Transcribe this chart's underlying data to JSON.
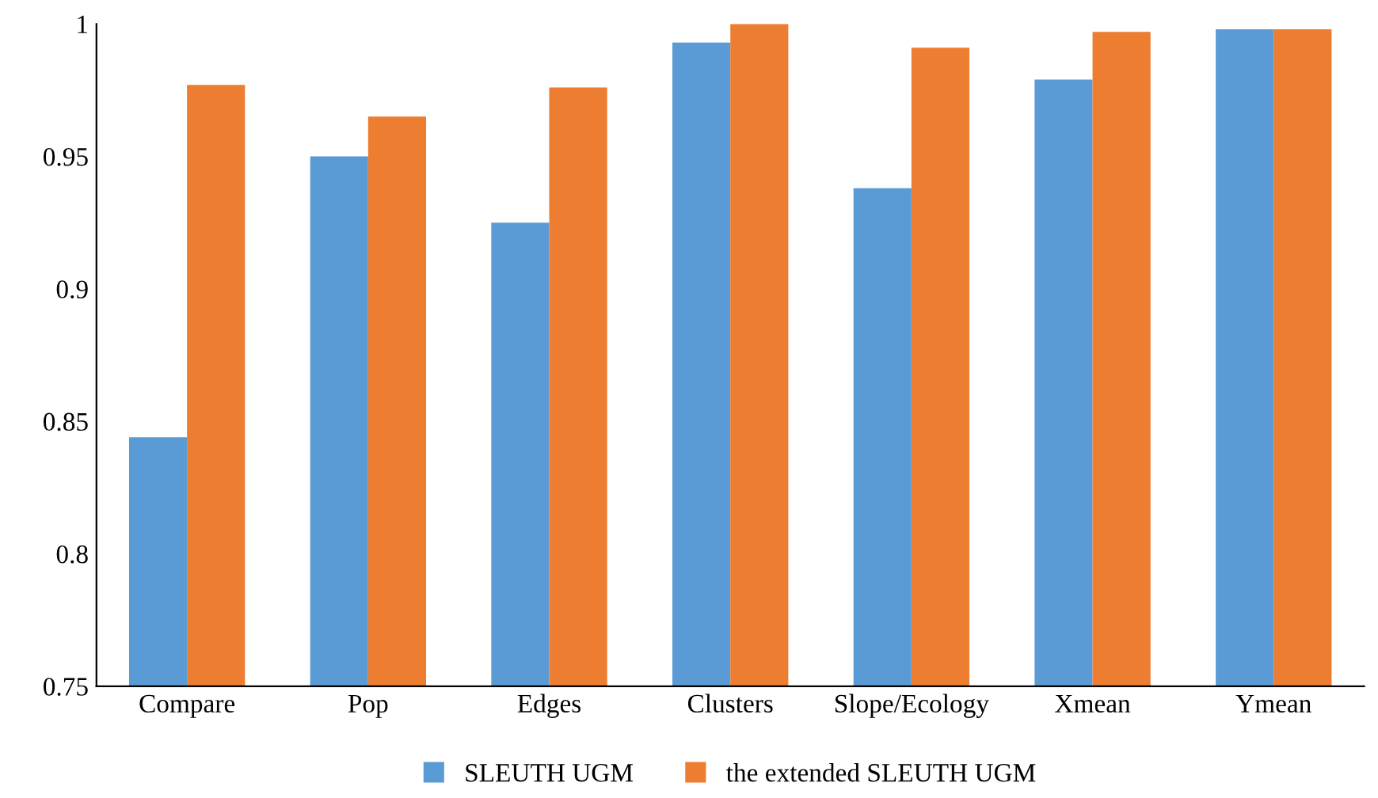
{
  "chart_data": {
    "type": "bar",
    "categories": [
      "Compare",
      "Pop",
      "Edges",
      "Clusters",
      "Slope/Ecology",
      "Xmean",
      "Ymean"
    ],
    "series": [
      {
        "name": "SLEUTH UGM",
        "color": "#5b9bd5",
        "values": [
          0.844,
          0.95,
          0.925,
          0.993,
          0.938,
          0.979,
          0.998
        ]
      },
      {
        "name": "the extended SLEUTH UGM",
        "color": "#ed7d31",
        "values": [
          0.977,
          0.965,
          0.976,
          1.0,
          0.991,
          0.997,
          0.998
        ]
      }
    ],
    "ylim": [
      0.75,
      1
    ],
    "yticks": [
      0.75,
      0.8,
      0.85,
      0.9,
      0.95,
      {
        "value": 1,
        "label": "1"
      }
    ],
    "grid": false,
    "legend": "bottom"
  }
}
